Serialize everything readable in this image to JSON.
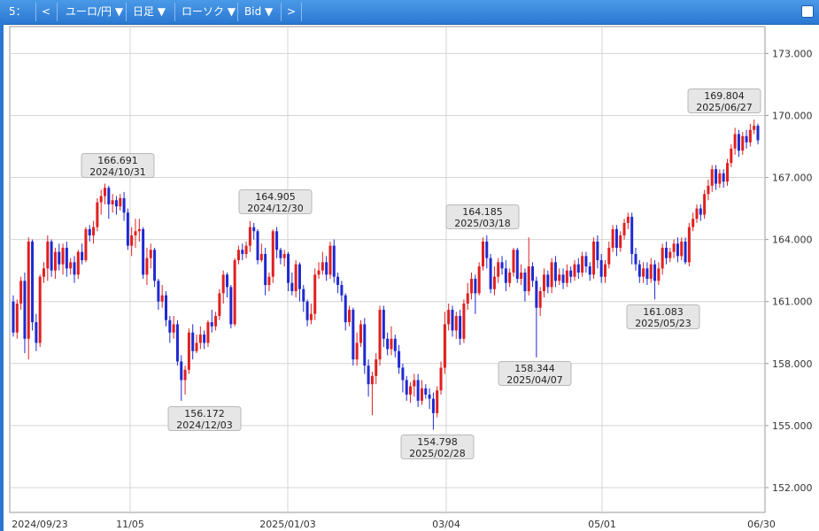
{
  "toolbar": {
    "slot": "5：",
    "prev": "<",
    "pair": "ユーロ/円 ▼",
    "period": "日足 ▼",
    "style": "ローソク ▼",
    "price_type": "Bid ▼",
    "next": ">"
  },
  "chart_data": {
    "type": "candlestick",
    "ylim": [
      150.8,
      174.3
    ],
    "y_ticks": [
      "152.000",
      "155.000",
      "158.000",
      "161.000",
      "164.000",
      "167.000",
      "170.000",
      "173.000"
    ],
    "x_labels": [
      "2024/09/23",
      "11/05",
      "2025/01/03",
      "03/04",
      "05/01",
      "06/30"
    ],
    "annotations": [
      {
        "value": "166.691",
        "date": "2024/10/31",
        "type": "high"
      },
      {
        "value": "156.172",
        "date": "2024/12/03",
        "type": "low"
      },
      {
        "value": "164.905",
        "date": "2024/12/30",
        "type": "high"
      },
      {
        "value": "154.798",
        "date": "2025/02/28",
        "type": "low"
      },
      {
        "value": "164.185",
        "date": "2025/03/18",
        "type": "high"
      },
      {
        "value": "158.344",
        "date": "2025/04/07",
        "type": "low"
      },
      {
        "value": "161.083",
        "date": "2025/05/23",
        "type": "low"
      },
      {
        "value": "169.804",
        "date": "2025/06/27",
        "type": "high"
      }
    ],
    "candles": [
      [
        161.0,
        159.5,
        161.3,
        159.3
      ],
      [
        159.5,
        160.9,
        161.1,
        159.2
      ],
      [
        160.9,
        162.0,
        162.2,
        160.6
      ],
      [
        162.0,
        159.2,
        162.4,
        158.5
      ],
      [
        159.2,
        163.9,
        164.1,
        158.2
      ],
      [
        163.9,
        160.0,
        164.0,
        159.6
      ],
      [
        160.0,
        159.0,
        160.4,
        158.6
      ],
      [
        159.0,
        162.2,
        162.3,
        158.8
      ],
      [
        162.2,
        162.6,
        162.9,
        161.9
      ],
      [
        162.6,
        163.9,
        164.2,
        162.0
      ],
      [
        163.9,
        162.5,
        164.0,
        162.2
      ],
      [
        162.5,
        163.4,
        163.6,
        162.1
      ],
      [
        163.4,
        162.8,
        163.8,
        162.5
      ],
      [
        162.8,
        163.6,
        163.8,
        162.3
      ],
      [
        163.6,
        162.6,
        163.9,
        162.2
      ],
      [
        162.6,
        162.9,
        163.1,
        162.3
      ],
      [
        162.9,
        162.3,
        163.2,
        161.9
      ],
      [
        162.3,
        163.4,
        163.5,
        162.1
      ],
      [
        163.4,
        163.0,
        163.8,
        162.8
      ],
      [
        163.0,
        164.5,
        164.6,
        162.9
      ],
      [
        164.5,
        164.2,
        164.7,
        163.9
      ],
      [
        164.2,
        164.6,
        164.9,
        163.8
      ],
      [
        164.6,
        165.8,
        166.0,
        164.4
      ],
      [
        165.8,
        166.1,
        166.4,
        165.2
      ],
      [
        166.1,
        166.5,
        166.7,
        165.7
      ],
      [
        166.5,
        165.7,
        166.6,
        165.0
      ],
      [
        165.7,
        165.9,
        166.2,
        165.3
      ],
      [
        165.9,
        165.6,
        166.1,
        165.2
      ],
      [
        165.6,
        166.0,
        166.2,
        165.4
      ],
      [
        166.0,
        165.3,
        166.3,
        164.9
      ],
      [
        165.3,
        163.7,
        165.5,
        163.5
      ],
      [
        163.7,
        164.2,
        164.6,
        163.2
      ],
      [
        164.2,
        164.4,
        165.0,
        163.6
      ],
      [
        164.4,
        164.5,
        165.0,
        163.9
      ],
      [
        164.5,
        162.3,
        164.6,
        162.1
      ],
      [
        162.3,
        163.1,
        163.6,
        161.8
      ],
      [
        163.1,
        163.5,
        163.8,
        162.6
      ],
      [
        163.5,
        162.0,
        163.6,
        161.7
      ],
      [
        162.0,
        161.0,
        162.1,
        160.6
      ],
      [
        161.0,
        161.3,
        161.8,
        160.7
      ],
      [
        161.3,
        160.1,
        161.5,
        159.8
      ],
      [
        160.1,
        159.5,
        160.3,
        159.0
      ],
      [
        159.5,
        159.9,
        160.3,
        159.2
      ],
      [
        159.9,
        158.1,
        160.1,
        157.9
      ],
      [
        158.1,
        157.2,
        158.4,
        156.2
      ],
      [
        157.2,
        157.7,
        157.9,
        156.5
      ],
      [
        157.7,
        159.5,
        159.7,
        157.5
      ],
      [
        159.5,
        158.6,
        159.9,
        158.2
      ],
      [
        158.6,
        159.0,
        159.4,
        158.5
      ],
      [
        159.0,
        159.4,
        159.8,
        158.7
      ],
      [
        159.4,
        159.0,
        159.6,
        158.7
      ],
      [
        159.0,
        160.0,
        160.1,
        158.8
      ],
      [
        160.0,
        159.8,
        160.6,
        159.5
      ],
      [
        159.8,
        160.3,
        160.5,
        159.6
      ],
      [
        160.3,
        161.4,
        161.6,
        160.1
      ],
      [
        161.4,
        162.3,
        162.5,
        160.9
      ],
      [
        162.3,
        161.7,
        162.4,
        161.2
      ],
      [
        161.7,
        159.9,
        161.8,
        159.7
      ],
      [
        159.9,
        163.0,
        163.1,
        159.8
      ],
      [
        163.0,
        163.5,
        163.7,
        162.8
      ],
      [
        163.5,
        163.3,
        163.8,
        163.0
      ],
      [
        163.3,
        163.7,
        163.9,
        163.1
      ],
      [
        163.7,
        164.6,
        164.9,
        163.4
      ],
      [
        164.6,
        164.4,
        164.8,
        164.0
      ],
      [
        164.4,
        163.0,
        164.5,
        162.8
      ],
      [
        163.0,
        163.3,
        163.8,
        162.9
      ],
      [
        163.3,
        161.8,
        163.6,
        161.3
      ],
      [
        161.8,
        162.2,
        162.4,
        161.5
      ],
      [
        162.2,
        164.4,
        164.5,
        161.9
      ],
      [
        164.4,
        163.5,
        164.6,
        163.1
      ],
      [
        163.5,
        163.1,
        163.6,
        162.8
      ],
      [
        163.1,
        163.3,
        163.5,
        162.7
      ],
      [
        163.3,
        161.9,
        163.4,
        161.5
      ],
      [
        161.9,
        161.5,
        162.4,
        161.3
      ],
      [
        161.5,
        162.8,
        163.0,
        161.2
      ],
      [
        162.8,
        161.6,
        162.9,
        161.0
      ],
      [
        161.6,
        161.0,
        161.8,
        160.5
      ],
      [
        161.0,
        160.1,
        161.1,
        159.8
      ],
      [
        160.1,
        160.4,
        160.9,
        159.9
      ],
      [
        160.4,
        162.3,
        162.6,
        160.1
      ],
      [
        162.3,
        162.5,
        162.9,
        162.1
      ],
      [
        162.5,
        162.9,
        163.4,
        162.3
      ],
      [
        162.9,
        162.3,
        163.2,
        162.0
      ],
      [
        162.3,
        163.7,
        163.9,
        162.1
      ],
      [
        163.7,
        162.2,
        164.0,
        161.9
      ],
      [
        162.2,
        161.8,
        162.4,
        161.4
      ],
      [
        161.8,
        161.3,
        162.0,
        161.0
      ],
      [
        161.3,
        160.0,
        161.4,
        159.6
      ],
      [
        160.0,
        160.6,
        160.8,
        159.8
      ],
      [
        160.6,
        158.2,
        160.7,
        157.9
      ],
      [
        158.2,
        159.0,
        159.5,
        157.9
      ],
      [
        159.0,
        159.9,
        160.1,
        158.8
      ],
      [
        159.9,
        157.9,
        160.2,
        157.5
      ],
      [
        157.9,
        157.0,
        158.2,
        156.4
      ],
      [
        157.0,
        157.4,
        157.6,
        155.5
      ],
      [
        157.4,
        158.2,
        158.5,
        157.0
      ],
      [
        158.2,
        160.6,
        160.8,
        157.9
      ],
      [
        160.6,
        159.2,
        160.8,
        158.8
      ],
      [
        159.2,
        158.7,
        159.5,
        158.4
      ],
      [
        158.7,
        159.2,
        159.8,
        158.4
      ],
      [
        159.2,
        158.6,
        159.4,
        158.3
      ],
      [
        158.6,
        157.8,
        158.9,
        157.5
      ],
      [
        157.8,
        157.2,
        158.0,
        156.6
      ],
      [
        157.2,
        156.5,
        157.4,
        156.2
      ],
      [
        156.5,
        156.9,
        157.1,
        156.1
      ],
      [
        156.9,
        157.2,
        157.5,
        156.4
      ],
      [
        157.2,
        156.2,
        157.5,
        155.9
      ],
      [
        156.2,
        156.8,
        157.2,
        156.0
      ],
      [
        156.8,
        156.5,
        157.0,
        156.3
      ],
      [
        156.5,
        156.3,
        156.8,
        155.8
      ],
      [
        156.3,
        155.6,
        156.6,
        154.8
      ],
      [
        155.6,
        156.7,
        156.9,
        155.4
      ],
      [
        156.7,
        157.8,
        158.1,
        156.5
      ],
      [
        157.8,
        159.9,
        160.5,
        157.5
      ],
      [
        159.9,
        160.6,
        160.9,
        159.6
      ],
      [
        160.6,
        159.6,
        160.8,
        159.3
      ],
      [
        159.6,
        160.3,
        160.5,
        159.2
      ],
      [
        160.3,
        159.2,
        160.6,
        158.9
      ],
      [
        159.2,
        160.9,
        161.1,
        159.0
      ],
      [
        160.9,
        161.4,
        161.9,
        160.6
      ],
      [
        161.4,
        162.1,
        162.4,
        161.1
      ],
      [
        162.1,
        161.4,
        162.3,
        160.4
      ],
      [
        161.4,
        162.7,
        162.9,
        161.3
      ],
      [
        162.7,
        163.9,
        164.1,
        162.5
      ],
      [
        163.9,
        163.1,
        164.2,
        162.6
      ],
      [
        163.1,
        161.6,
        163.3,
        161.4
      ],
      [
        161.6,
        162.2,
        162.7,
        161.3
      ],
      [
        162.2,
        162.9,
        163.1,
        161.9
      ],
      [
        162.9,
        162.6,
        163.2,
        162.3
      ],
      [
        162.6,
        161.9,
        163.0,
        161.5
      ],
      [
        161.9,
        162.4,
        162.6,
        161.7
      ],
      [
        162.4,
        163.5,
        163.6,
        162.2
      ],
      [
        163.5,
        162.1,
        163.6,
        161.9
      ],
      [
        162.1,
        162.4,
        162.8,
        161.8
      ],
      [
        162.4,
        161.5,
        162.6,
        161.0
      ],
      [
        161.5,
        162.7,
        164.1,
        161.3
      ],
      [
        162.7,
        162.0,
        162.9,
        161.7
      ],
      [
        162.0,
        160.7,
        162.2,
        158.3
      ],
      [
        160.7,
        161.5,
        161.7,
        160.3
      ],
      [
        161.5,
        162.3,
        162.6,
        161.2
      ],
      [
        162.3,
        161.7,
        162.5,
        161.4
      ],
      [
        161.7,
        162.9,
        163.1,
        161.4
      ],
      [
        162.9,
        162.0,
        163.2,
        161.7
      ],
      [
        162.0,
        162.3,
        162.6,
        161.8
      ],
      [
        162.3,
        161.9,
        162.6,
        161.6
      ],
      [
        161.9,
        162.5,
        162.8,
        161.7
      ],
      [
        162.5,
        162.2,
        162.7,
        161.9
      ],
      [
        162.2,
        162.8,
        163.0,
        162.0
      ],
      [
        162.8,
        162.4,
        163.1,
        162.1
      ],
      [
        162.4,
        163.2,
        163.4,
        162.2
      ],
      [
        163.2,
        162.7,
        163.4,
        162.4
      ],
      [
        162.7,
        162.3,
        162.9,
        162.0
      ],
      [
        162.3,
        163.9,
        164.1,
        162.1
      ],
      [
        163.9,
        163.0,
        164.2,
        162.6
      ],
      [
        163.0,
        162.2,
        163.3,
        161.9
      ],
      [
        162.2,
        162.8,
        163.0,
        161.9
      ],
      [
        162.8,
        163.6,
        163.9,
        162.6
      ],
      [
        163.6,
        164.5,
        164.7,
        163.4
      ],
      [
        164.5,
        163.6,
        164.7,
        163.2
      ],
      [
        163.6,
        164.2,
        164.4,
        163.4
      ],
      [
        164.2,
        164.8,
        165.0,
        164.0
      ],
      [
        164.8,
        165.1,
        165.3,
        164.5
      ],
      [
        165.1,
        163.3,
        165.3,
        162.8
      ],
      [
        163.3,
        162.8,
        163.6,
        162.5
      ],
      [
        162.8,
        162.2,
        163.0,
        161.9
      ],
      [
        162.2,
        162.6,
        162.9,
        161.9
      ],
      [
        162.6,
        162.1,
        162.9,
        161.8
      ],
      [
        162.1,
        162.8,
        163.1,
        161.9
      ],
      [
        162.8,
        162.0,
        163.0,
        161.1
      ],
      [
        162.0,
        162.6,
        162.9,
        161.8
      ],
      [
        162.6,
        163.6,
        163.8,
        162.3
      ],
      [
        163.6,
        163.1,
        163.9,
        162.8
      ],
      [
        163.1,
        163.4,
        163.6,
        162.9
      ],
      [
        163.4,
        163.8,
        164.0,
        163.1
      ],
      [
        163.8,
        163.2,
        164.1,
        162.9
      ],
      [
        163.2,
        163.9,
        164.1,
        163.0
      ],
      [
        163.9,
        162.9,
        164.1,
        162.8
      ],
      [
        162.9,
        164.6,
        164.8,
        162.7
      ],
      [
        164.6,
        165.0,
        165.3,
        164.4
      ],
      [
        165.0,
        165.5,
        165.7,
        164.8
      ],
      [
        165.5,
        165.2,
        165.7,
        164.9
      ],
      [
        165.2,
        166.2,
        166.4,
        165.0
      ],
      [
        166.2,
        166.6,
        166.9,
        165.9
      ],
      [
        166.6,
        167.4,
        167.6,
        166.3
      ],
      [
        167.4,
        166.7,
        167.6,
        166.4
      ],
      [
        166.7,
        167.2,
        167.4,
        166.5
      ],
      [
        167.2,
        166.8,
        167.4,
        166.5
      ],
      [
        166.8,
        167.7,
        167.9,
        166.6
      ],
      [
        167.7,
        168.4,
        168.6,
        167.5
      ],
      [
        168.4,
        169.1,
        169.4,
        168.1
      ],
      [
        169.1,
        168.3,
        169.3,
        168.0
      ],
      [
        168.3,
        169.0,
        169.2,
        168.1
      ],
      [
        169.0,
        168.7,
        169.3,
        168.4
      ],
      [
        168.7,
        169.3,
        169.6,
        168.5
      ],
      [
        169.3,
        169.5,
        169.8,
        169.1
      ],
      [
        169.5,
        168.8,
        169.6,
        168.6
      ]
    ]
  }
}
